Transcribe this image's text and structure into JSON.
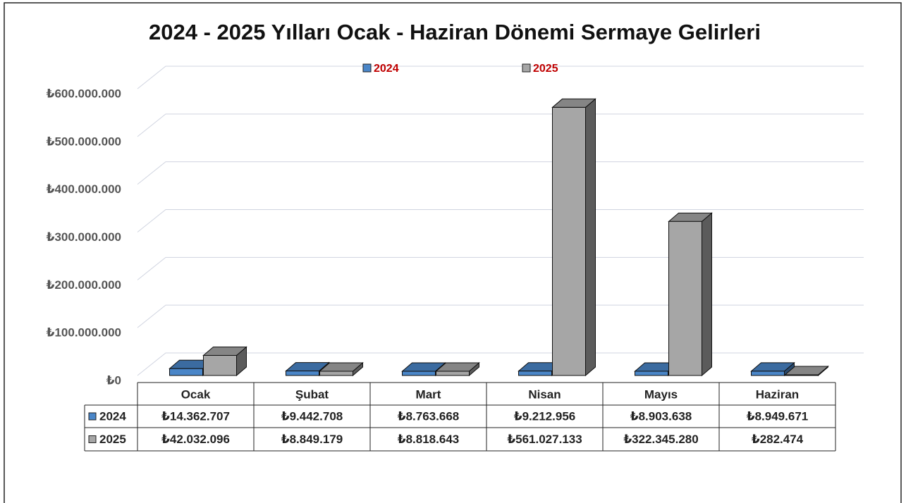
{
  "chart_data": {
    "type": "bar3d",
    "title": "2024 - 2025 Yılları Ocak - Haziran Dönemi Sermaye Gelirleri",
    "categories": [
      "Ocak",
      "Şubat",
      "Mart",
      "Nisan",
      "Mayıs",
      "Haziran"
    ],
    "series": [
      {
        "name": "2024",
        "color": "#4a86c8",
        "values": [
          14362707,
          9442708,
          8763668,
          9212956,
          8903638,
          8949671
        ],
        "value_labels": [
          "₺14.362.707",
          "₺9.442.708",
          "₺8.763.668",
          "₺9.212.956",
          "₺8.903.638",
          "₺8.949.671"
        ]
      },
      {
        "name": "2025",
        "color": "#a6a6a6",
        "values": [
          42032096,
          8849179,
          8818643,
          561027133,
          322345280,
          282474
        ],
        "value_labels": [
          "₺42.032.096",
          "₺8.849.179",
          "₺8.818.643",
          "₺561.027.133",
          "₺322.345.280",
          "₺282.474"
        ]
      }
    ],
    "ylim": [
      0,
      600000000
    ],
    "yticks": [
      {
        "value": 0,
        "label": "₺0"
      },
      {
        "value": 100000000,
        "label": "₺100.000.000"
      },
      {
        "value": 200000000,
        "label": "₺200.000.000"
      },
      {
        "value": 300000000,
        "label": "₺300.000.000"
      },
      {
        "value": 400000000,
        "label": "₺400.000.000"
      },
      {
        "value": 500000000,
        "label": "₺500.000.000"
      },
      {
        "value": 600000000,
        "label": "₺600.000.000"
      }
    ],
    "grid": true
  }
}
